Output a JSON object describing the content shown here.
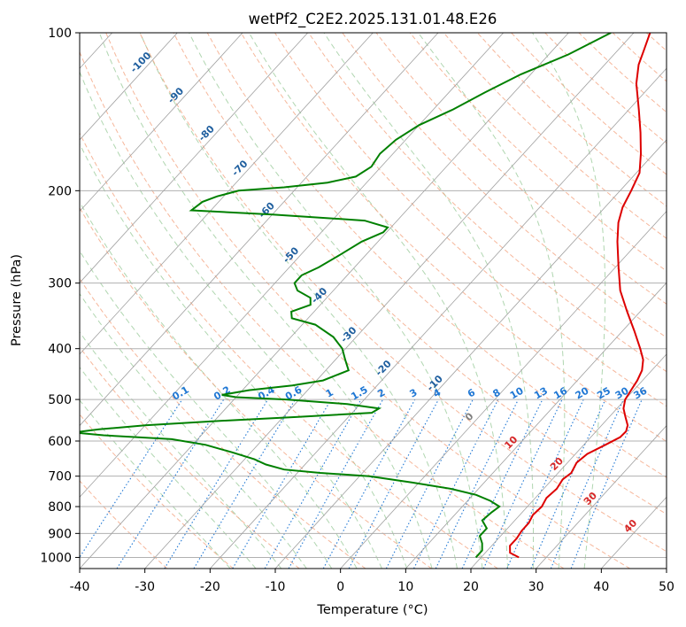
{
  "chart_data": {
    "type": "line",
    "title": "wetPf2_C2E2.2025.131.01.48.E26",
    "xlabel": "Temperature (°C)",
    "ylabel": "Pressure (hPa)",
    "xlim": [
      -40,
      50
    ],
    "ylim": [
      1050,
      100
    ],
    "y_scale": "log",
    "grid": true,
    "x_ticks": [
      -40,
      -30,
      -20,
      -10,
      0,
      10,
      20,
      30,
      40,
      50
    ],
    "y_ticks": [
      100,
      200,
      300,
      400,
      500,
      600,
      700,
      800,
      900,
      1000
    ],
    "series": [
      {
        "color": "#dd0000",
        "points": [
          [
            1000,
            25.8
          ],
          [
            980,
            23.8
          ],
          [
            950,
            22.8
          ],
          [
            920,
            22.8
          ],
          [
            890,
            22.5
          ],
          [
            860,
            22.5
          ],
          [
            830,
            22.0
          ],
          [
            800,
            22.2
          ],
          [
            770,
            21.7
          ],
          [
            740,
            22.0
          ],
          [
            710,
            21.6
          ],
          [
            690,
            22.0
          ],
          [
            660,
            21.4
          ],
          [
            635,
            21.8
          ],
          [
            610,
            23.3
          ],
          [
            590,
            24.5
          ],
          [
            575,
            24.6
          ],
          [
            560,
            24.0
          ],
          [
            540,
            22.5
          ],
          [
            520,
            21.0
          ],
          [
            500,
            20.0
          ],
          [
            480,
            19.6
          ],
          [
            460,
            19.2
          ],
          [
            440,
            18.5
          ],
          [
            420,
            17.2
          ],
          [
            400,
            15.2
          ],
          [
            370,
            11.8
          ],
          [
            340,
            8.0
          ],
          [
            310,
            4.0
          ],
          [
            280,
            0.5
          ],
          [
            250,
            -3.3
          ],
          [
            230,
            -5.8
          ],
          [
            215,
            -7.3
          ],
          [
            200,
            -8.3
          ],
          [
            185,
            -9.5
          ],
          [
            170,
            -12.0
          ],
          [
            155,
            -15.0
          ],
          [
            140,
            -18.5
          ],
          [
            125,
            -22.5
          ],
          [
            115,
            -24.8
          ],
          [
            108,
            -26.0
          ],
          [
            100,
            -27.5
          ]
        ]
      },
      {
        "color": "#008000",
        "points": [
          [
            1000,
            19.2
          ],
          [
            970,
            19.2
          ],
          [
            940,
            18.2
          ],
          [
            910,
            16.8
          ],
          [
            880,
            16.8
          ],
          [
            850,
            15.0
          ],
          [
            820,
            15.3
          ],
          [
            800,
            15.7
          ],
          [
            780,
            13.5
          ],
          [
            760,
            10.5
          ],
          [
            740,
            5.8
          ],
          [
            720,
            -1.0
          ],
          [
            700,
            -8.5
          ],
          [
            690,
            -16.5
          ],
          [
            680,
            -22.5
          ],
          [
            665,
            -26.0
          ],
          [
            650,
            -28.5
          ],
          [
            630,
            -33.0
          ],
          [
            610,
            -38.0
          ],
          [
            595,
            -44.0
          ],
          [
            585,
            -55.0
          ],
          [
            578,
            -60.0
          ],
          [
            570,
            -56.5
          ],
          [
            560,
            -50.0
          ],
          [
            550,
            -40.0
          ],
          [
            540,
            -28.0
          ],
          [
            530,
            -17.0
          ],
          [
            520,
            -16.5
          ],
          [
            510,
            -22.0
          ],
          [
            500,
            -32.0
          ],
          [
            495,
            -40.0
          ],
          [
            490,
            -42.5
          ],
          [
            480,
            -39.0
          ],
          [
            470,
            -33.0
          ],
          [
            460,
            -29.0
          ],
          [
            440,
            -26.5
          ],
          [
            420,
            -28.5
          ],
          [
            400,
            -30.5
          ],
          [
            380,
            -33.5
          ],
          [
            360,
            -38.0
          ],
          [
            350,
            -42.5
          ],
          [
            340,
            -43.5
          ],
          [
            330,
            -41.5
          ],
          [
            320,
            -42.5
          ],
          [
            310,
            -45.5
          ],
          [
            300,
            -47.0
          ],
          [
            290,
            -47.0
          ],
          [
            280,
            -45.5
          ],
          [
            265,
            -44.0
          ],
          [
            250,
            -42.5
          ],
          [
            240,
            -40.5
          ],
          [
            235,
            -40.5
          ],
          [
            228,
            -45.0
          ],
          [
            222,
            -60.0
          ],
          [
            218,
            -73.0
          ],
          [
            210,
            -72.5
          ],
          [
            205,
            -71.0
          ],
          [
            200,
            -68.5
          ],
          [
            197,
            -62.0
          ],
          [
            193,
            -56.0
          ],
          [
            188,
            -52.5
          ],
          [
            180,
            -51.5
          ],
          [
            170,
            -52.0
          ],
          [
            160,
            -51.5
          ],
          [
            150,
            -50.0
          ],
          [
            140,
            -47.0
          ],
          [
            130,
            -44.5
          ],
          [
            120,
            -41.5
          ],
          [
            110,
            -37.0
          ],
          [
            100,
            -33.5
          ]
        ]
      }
    ],
    "dry_adiabat_labels": [
      "-100",
      "-90",
      "-80",
      "-70",
      "-60",
      "-50",
      "-40",
      "-30",
      "-20",
      "-10",
      "0",
      "10",
      "20",
      "30",
      "40"
    ],
    "mixing_ratio_labels": [
      "0.1",
      "0.2",
      "0.4",
      "0.6",
      "1",
      "1.5",
      "2",
      "3",
      "4",
      "6",
      "8",
      "10",
      "13",
      "16",
      "20",
      "25",
      "30",
      "36"
    ],
    "colors": {
      "temperature": "#dd0000",
      "dewpoint": "#008000",
      "dry_adiabat": "#f4a582",
      "moist_adiabat": "#9ccc9c",
      "mixing_ratio": "#1f77d4",
      "isotherm": "#a0a0a0",
      "isobar": "#b0b0b0",
      "dry_label": "#1f5f9f",
      "warm_label": "#d62728",
      "zero_label": "#7f7f7f"
    }
  }
}
